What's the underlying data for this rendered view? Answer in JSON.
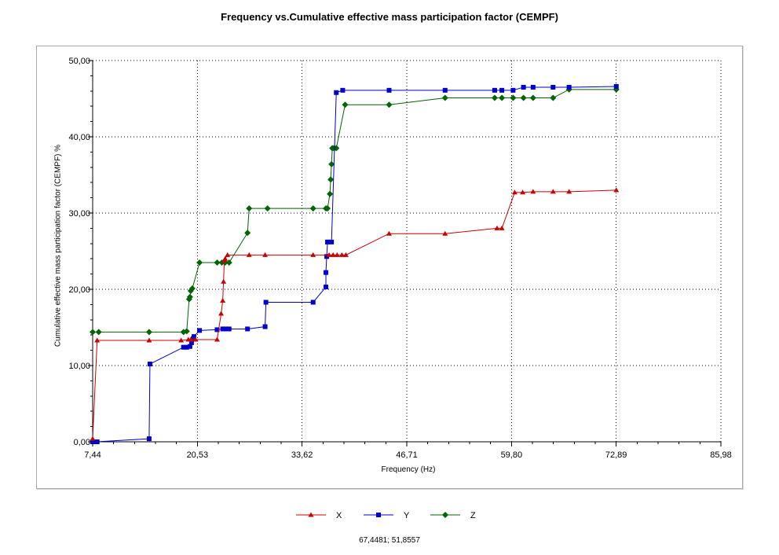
{
  "chart_data": {
    "type": "line",
    "title": "Frequency vs.Cumulative effective mass participation factor (CEMPF)",
    "xlabel": "Frequency (Hz)",
    "ylabel": "Cumulative effective mass participation factor (CEMPF) %",
    "xlim": [
      7.44,
      85.98
    ],
    "ylim": [
      0,
      50
    ],
    "x_ticks": [
      "7,44",
      "20,53",
      "33,62",
      "46,71",
      "59,80",
      "72,89",
      "85,98"
    ],
    "x_tick_values": [
      7.44,
      20.53,
      33.62,
      46.71,
      59.8,
      72.89,
      85.98
    ],
    "y_ticks": [
      "0,00",
      "10,00",
      "20,00",
      "30,00",
      "40,00",
      "50,00"
    ],
    "y_tick_values": [
      0,
      10,
      20,
      30,
      40,
      50
    ],
    "grid": true,
    "legend_position": "bottom",
    "series": [
      {
        "name": "X",
        "color": "#cc0000",
        "marker": "triangle",
        "points": [
          [
            7.44,
            0.4
          ],
          [
            8.0,
            13.3
          ],
          [
            14.5,
            13.3
          ],
          [
            18.5,
            13.3
          ],
          [
            19.4,
            13.4
          ],
          [
            19.7,
            13.4
          ],
          [
            20.3,
            13.4
          ],
          [
            23.0,
            13.4
          ],
          [
            23.5,
            16.8
          ],
          [
            23.7,
            18.5
          ],
          [
            23.8,
            21.0
          ],
          [
            23.9,
            23.8
          ],
          [
            24.0,
            24.0
          ],
          [
            24.3,
            24.5
          ],
          [
            27.0,
            24.5
          ],
          [
            29.0,
            24.5
          ],
          [
            35.0,
            24.5
          ],
          [
            37.0,
            24.5
          ],
          [
            37.5,
            24.5
          ],
          [
            38.0,
            24.5
          ],
          [
            38.6,
            24.5
          ],
          [
            39.1,
            24.5
          ],
          [
            44.5,
            27.3
          ],
          [
            51.5,
            27.3
          ],
          [
            58.0,
            28.0
          ],
          [
            58.6,
            28.0
          ],
          [
            60.2,
            32.7
          ],
          [
            61.2,
            32.7
          ],
          [
            62.5,
            32.8
          ],
          [
            65.0,
            32.8
          ],
          [
            67.0,
            32.8
          ],
          [
            72.9,
            33.0
          ]
        ]
      },
      {
        "name": "Y",
        "color": "#0000cc",
        "marker": "square",
        "points": [
          [
            7.44,
            0.0
          ],
          [
            8.0,
            0.0
          ],
          [
            14.5,
            0.4
          ],
          [
            14.6,
            10.2
          ],
          [
            18.8,
            12.4
          ],
          [
            19.2,
            12.4
          ],
          [
            19.6,
            12.5
          ],
          [
            19.8,
            13.0
          ],
          [
            20.0,
            13.5
          ],
          [
            20.1,
            13.8
          ],
          [
            20.8,
            14.6
          ],
          [
            23.0,
            14.7
          ],
          [
            23.7,
            14.8
          ],
          [
            24.1,
            14.8
          ],
          [
            24.5,
            14.8
          ],
          [
            26.8,
            14.8
          ],
          [
            29.0,
            15.1
          ],
          [
            29.1,
            18.3
          ],
          [
            35.0,
            18.3
          ],
          [
            36.6,
            20.3
          ],
          [
            36.6,
            22.2
          ],
          [
            36.7,
            24.3
          ],
          [
            36.8,
            26.2
          ],
          [
            37.3,
            26.2
          ],
          [
            37.9,
            45.8
          ],
          [
            38.7,
            46.1
          ],
          [
            44.5,
            46.1
          ],
          [
            51.5,
            46.1
          ],
          [
            57.7,
            46.1
          ],
          [
            58.6,
            46.1
          ],
          [
            60.0,
            46.1
          ],
          [
            61.3,
            46.5
          ],
          [
            62.5,
            46.5
          ],
          [
            65.0,
            46.5
          ],
          [
            67.0,
            46.5
          ],
          [
            72.9,
            46.6
          ]
        ]
      },
      {
        "name": "Z",
        "color": "#006400",
        "marker": "diamond",
        "points": [
          [
            7.44,
            14.4
          ],
          [
            8.2,
            14.4
          ],
          [
            14.5,
            14.4
          ],
          [
            18.8,
            14.4
          ],
          [
            19.2,
            14.5
          ],
          [
            19.5,
            18.7
          ],
          [
            19.6,
            19.0
          ],
          [
            19.7,
            19.8
          ],
          [
            19.9,
            20.1
          ],
          [
            20.8,
            23.5
          ],
          [
            23.0,
            23.5
          ],
          [
            23.6,
            23.5
          ],
          [
            24.0,
            23.5
          ],
          [
            24.5,
            23.5
          ],
          [
            26.8,
            27.4
          ],
          [
            27.0,
            30.6
          ],
          [
            29.3,
            30.6
          ],
          [
            35.0,
            30.6
          ],
          [
            36.6,
            30.6
          ],
          [
            36.8,
            30.6
          ],
          [
            37.1,
            32.5
          ],
          [
            37.2,
            34.4
          ],
          [
            37.3,
            36.4
          ],
          [
            37.4,
            38.5
          ],
          [
            37.6,
            38.5
          ],
          [
            37.9,
            38.5
          ],
          [
            39.0,
            44.2
          ],
          [
            44.5,
            44.2
          ],
          [
            51.5,
            45.1
          ],
          [
            57.7,
            45.1
          ],
          [
            58.6,
            45.1
          ],
          [
            60.0,
            45.1
          ],
          [
            61.3,
            45.1
          ],
          [
            62.5,
            45.1
          ],
          [
            65.0,
            45.1
          ],
          [
            67.0,
            46.2
          ],
          [
            72.9,
            46.2
          ]
        ]
      }
    ]
  },
  "status": {
    "coordinates": "67,4481; 51,8557"
  }
}
